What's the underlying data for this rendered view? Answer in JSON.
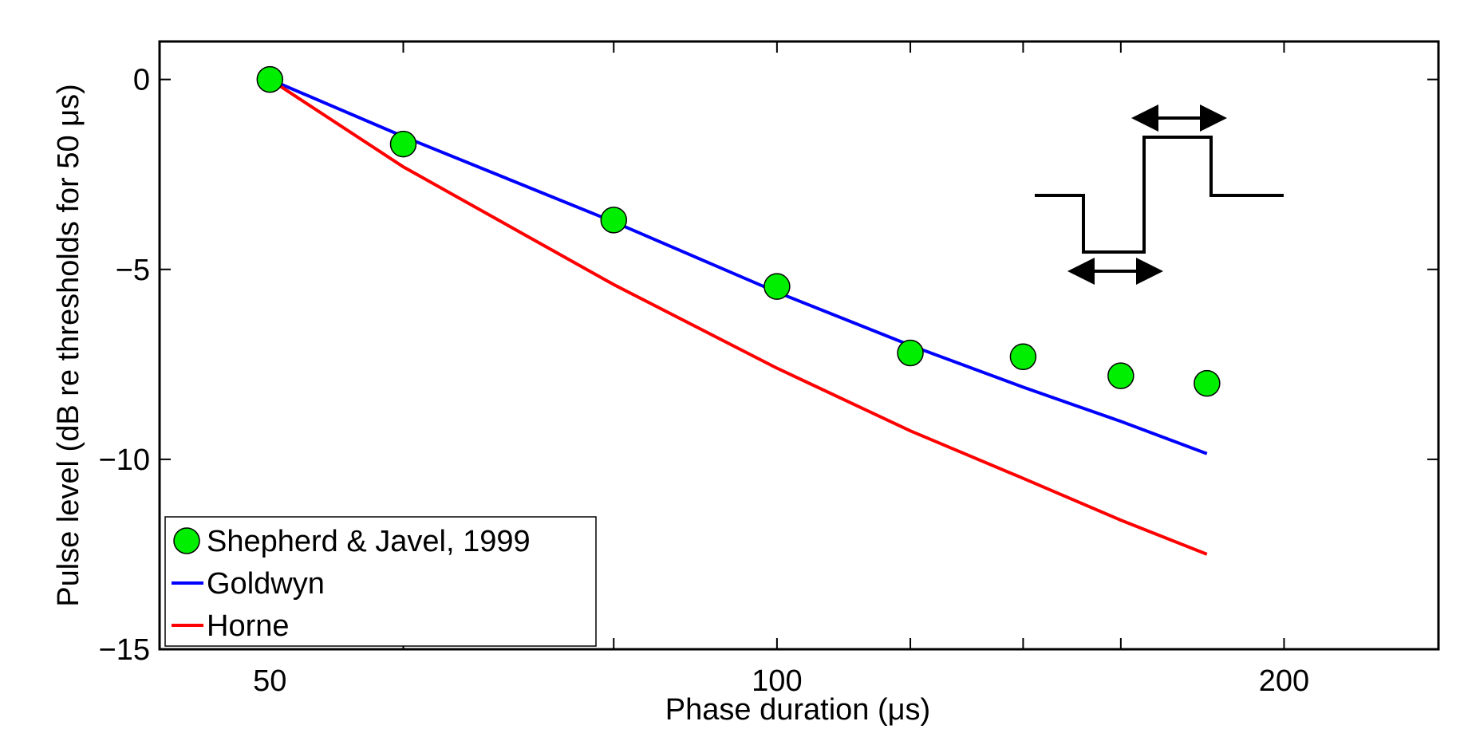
{
  "chart_data": {
    "type": "line",
    "xlabel": "Phase duration (μs)",
    "ylabel": "Pulse level (dB re thresholds for 50 μs)",
    "x_scale": "log",
    "xlim": [
      43,
      247
    ],
    "ylim": [
      -15,
      1
    ],
    "x_ticks": [
      50,
      100,
      200
    ],
    "x_minor_ticks": [
      60,
      80,
      100,
      120,
      140,
      160,
      200
    ],
    "y_ticks": [
      0,
      -5,
      -10,
      -15
    ],
    "y_tick_labels": [
      "0",
      "-5",
      "-10",
      "-15"
    ],
    "legend_position": "bottom-left",
    "series": [
      {
        "name": "Shepherd & Javel, 1999",
        "kind": "scatter",
        "color": "#00ee00",
        "x": [
          50,
          60,
          80,
          100,
          120,
          140,
          160,
          180
        ],
        "y": [
          0,
          -1.7,
          -3.7,
          -5.45,
          -7.2,
          -7.3,
          -7.8,
          -8.0
        ]
      },
      {
        "name": "Goldwyn",
        "kind": "line",
        "color": "#0000ff",
        "x": [
          50,
          60,
          80,
          100,
          120,
          140,
          160,
          180
        ],
        "y": [
          0,
          -1.5,
          -3.75,
          -5.6,
          -7.0,
          -8.1,
          -9.0,
          -9.85
        ]
      },
      {
        "name": "Horne",
        "kind": "line",
        "color": "#ff0000",
        "x": [
          50,
          60,
          80,
          100,
          120,
          140,
          160,
          180
        ],
        "y": [
          0,
          -2.3,
          -5.4,
          -7.6,
          -9.25,
          -10.5,
          -11.6,
          -12.5
        ]
      }
    ]
  }
}
